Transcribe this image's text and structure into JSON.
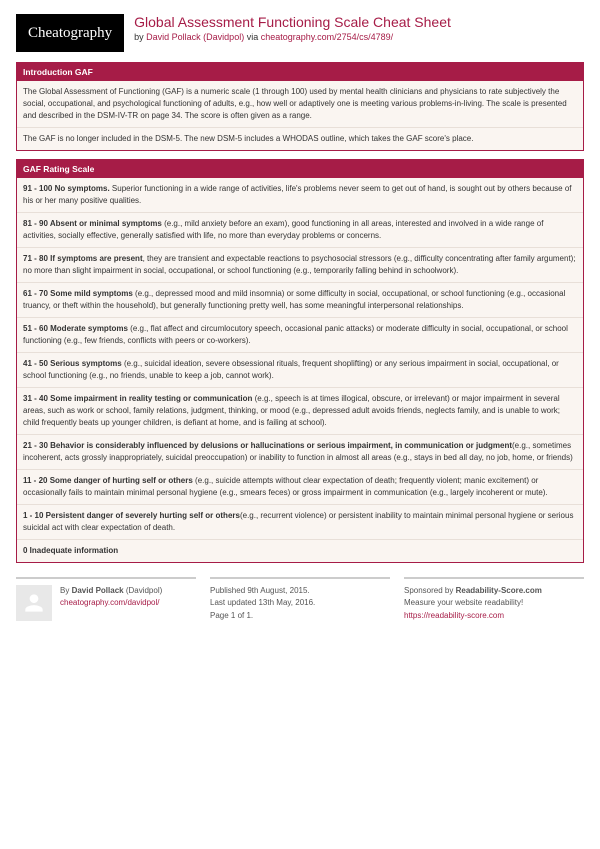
{
  "header": {
    "logo_text": "Cheatography",
    "title": "Global Assessment Functioning Scale Cheat Sheet",
    "byline_prefix": "by ",
    "author_name": "David Pollack (Davidpol)",
    "via": " via ",
    "source_path": "cheatography.com/2754/cs/4789/"
  },
  "sections": [
    {
      "title": "Introduction GAF",
      "rows": [
        {
          "bold": "",
          "text": "The Global Assessment of Functioning (GAF) is a numeric scale (1 through 100) used by mental health clinicians and physicians to rate subjectively the social, occupational, and psychological functioning of adults, e.g., how well or adaptively one is meeting various problems-in-living. The scale is presented and described in the DSM-IV-TR on page 34. The score is often given as a range."
        },
        {
          "bold": "",
          "text": "The GAF is no longer included in the DSM-5. The new DSM-5 includes a WHODAS outline, which takes the GAF score's place."
        }
      ]
    },
    {
      "title": "GAF Rating Scale",
      "rows": [
        {
          "bold": "91 - 100 No symptoms.",
          "text": " Superior functioning in a wide range of activities, life's problems never seem to get out of hand, is sought out by others because of his or her many positive qualities."
        },
        {
          "bold": "81 - 90 Absent or minimal symptoms",
          "text": " (e.g., mild anxiety before an exam), good functioning in all areas, interested and involved in a wide range of activities, socially effective, generally satisfied with life, no more than everyday problems or concerns."
        },
        {
          "bold": "71 - 80 If symptoms are present",
          "text": ", they are transient and expectable reactions to psychosocial stressors (e.g., difficulty concentrating after family argument); no more than slight impairment in social, occupational, or school functioning (e.g., temporarily falling behind in schoolwork)."
        },
        {
          "bold": "61 - 70 Some mild symptoms",
          "text": " (e.g., depressed mood and mild insomnia) or some difficulty in social, occupational, or school functioning (e.g., occasional truancy, or theft within the household), but generally functioning pretty well, has some meaningful interpersonal relationships."
        },
        {
          "bold": "51 - 60 Moderate symptoms",
          "text": " (e.g., flat affect and circumlocutory speech, occasional panic attacks) or moderate difficulty in social, occupational, or school functioning (e.g., few friends, conflicts with peers or co-workers)."
        },
        {
          "bold": "41 - 50 Serious symptoms",
          "text": " (e.g., suicidal ideation, severe obsessional rituals, frequent shoplifting) or any serious impairment in social, occupational, or school functioning (e.g., no friends, unable to keep a job, cannot work)."
        },
        {
          "bold": "31 - 40 Some impairment in reality testing or communication",
          "text": " (e.g., speech is at times illogical, obscure, or irrelevant) or major impairment in several areas, such as work or school, family relations, judgment, thinking, or mood (e.g., depressed adult avoids friends, neglects family, and is unable to work; child frequently beats up younger children, is defiant at home, and is failing at school)."
        },
        {
          "bold": "21 - 30 Behavior is considerably influenced by delusions or hallucinations or serious impairment, in communication or judgment",
          "text": "(e.g., sometimes incoherent, acts grossly inappropriately, suicidal preoccupation) or inability to function in almost all areas (e.g., stays in bed all day, no job, home, or friends)"
        },
        {
          "bold": "11 - 20 Some danger of hurting self or others",
          "text": " (e.g., suicide attempts without clear expectation of death; frequently violent; manic excitement) or occasionally fails to maintain minimal personal hygiene (e.g., smears feces) or gross impairment in communication (e.g., largely incoherent or mute)."
        },
        {
          "bold": "1 - 10 Persistent danger of severely hurting self or others",
          "text": "(e.g., recurrent violence) or persistent inability to maintain minimal personal hygiene or serious suicidal act with clear expectation of death."
        },
        {
          "bold": "0 Inadequate information",
          "text": ""
        }
      ]
    }
  ],
  "footer": {
    "col1": {
      "line1_prefix": "By ",
      "line1_bold": "David Pollack",
      "line1_suffix": " (Davidpol)",
      "link": "cheatography.com/davidpol/"
    },
    "col2": {
      "l1": "Published 9th August, 2015.",
      "l2": "Last updated 13th May, 2016.",
      "l3": "Page 1 of 1."
    },
    "col3": {
      "l1_prefix": "Sponsored by ",
      "l1_bold": "Readability-Score.com",
      "l2": "Measure your website readability!",
      "link": "https://readability-score.com"
    }
  },
  "colors": {
    "accent": "#a61c47",
    "section_bg": "#faf5f1",
    "border": "#e8dfd8"
  }
}
